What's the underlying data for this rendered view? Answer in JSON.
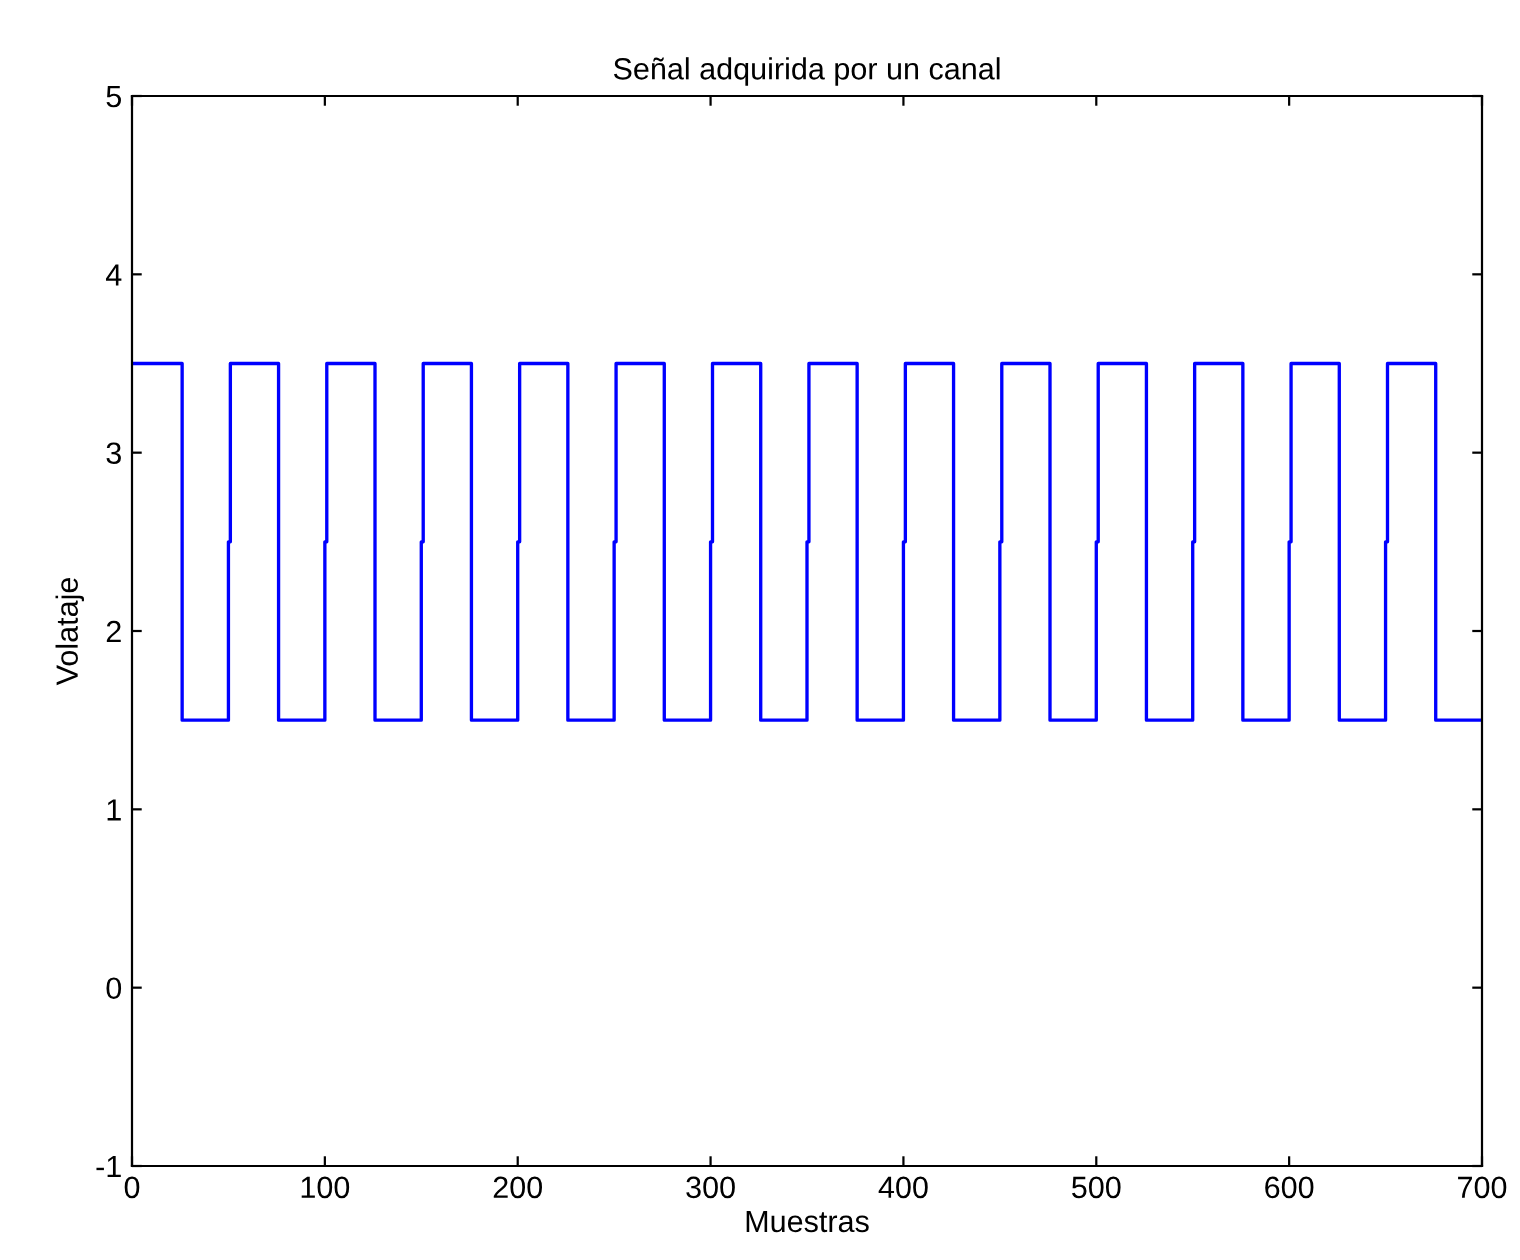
{
  "chart_data": {
    "type": "step",
    "title": "Señal adquirida por un canal",
    "xlabel": "Muestras",
    "ylabel": "Volataje",
    "series": [
      {
        "color": "#0000ff",
        "x": [
          0,
          26,
          50,
          51,
          76,
          100,
          101,
          126,
          150,
          151,
          176,
          200,
          201,
          226,
          250,
          251,
          276,
          300,
          301,
          326,
          350,
          351,
          376,
          400,
          401,
          426,
          450,
          451,
          476,
          500,
          501,
          526,
          550,
          551,
          576,
          600,
          601,
          626,
          650,
          651,
          676,
          700
        ],
        "values": [
          3.5,
          1.5,
          2.5,
          3.5,
          1.5,
          2.5,
          3.5,
          1.5,
          2.5,
          3.5,
          1.5,
          2.5,
          3.5,
          1.5,
          2.5,
          3.5,
          1.5,
          2.5,
          3.5,
          1.5,
          2.5,
          3.5,
          1.5,
          2.5,
          3.5,
          1.5,
          2.5,
          3.5,
          1.5,
          2.5,
          3.5,
          1.5,
          2.5,
          3.5,
          1.5,
          2.5,
          3.5,
          1.5,
          2.5,
          3.5,
          1.5,
          1.5
        ]
      }
    ],
    "xlim": [
      0,
      700
    ],
    "xticks": [
      0,
      100,
      200,
      300,
      400,
      500,
      600,
      700
    ],
    "ylim": [
      -1,
      5
    ],
    "yticks": [
      -1,
      0,
      1,
      2,
      3,
      4,
      5
    ],
    "grid": false,
    "legend": false
  }
}
